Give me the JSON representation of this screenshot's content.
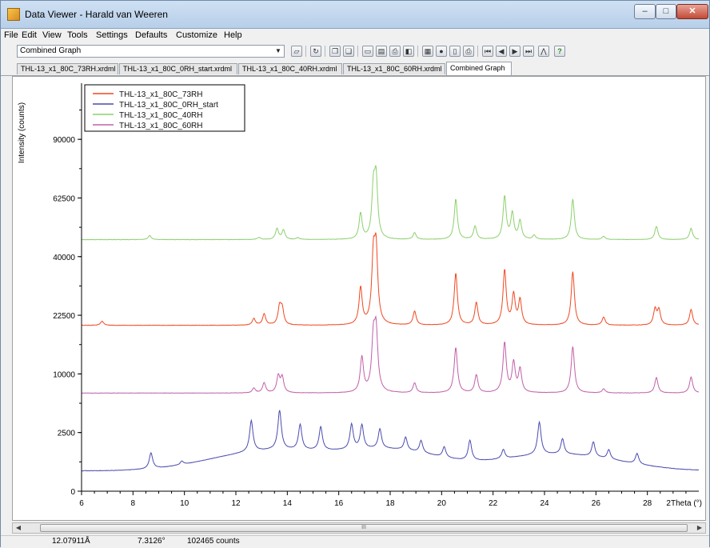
{
  "window": {
    "title": "Data Viewer - Harald van Weeren"
  },
  "menu": [
    "File",
    "Edit",
    "View",
    "Tools",
    "Settings",
    "Defaults",
    "Customize",
    "Help"
  ],
  "toolbar": {
    "combo_value": "Combined Graph",
    "icons": [
      "open-folder-icon",
      "refresh-icon",
      "copy-icon",
      "paste-icon",
      "export-icon",
      "chart-icon",
      "print-icon",
      "print-preview-icon",
      "grid-icon",
      "circle-icon",
      "page-icon",
      "printer-icon",
      "first-icon",
      "prev-icon",
      "next-icon",
      "last-icon",
      "peak-icon",
      "help-icon"
    ]
  },
  "tabs": [
    "THL-13_x1_80C_73RH.xrdml",
    "THL-13_x1_80C_0RH_start.xrdml",
    "THL-13_x1_80C_40RH.xrdml",
    "THL-13_x1_80C_60RH.xrdml",
    "Combined Graph"
  ],
  "active_tab": 4,
  "chart_data": {
    "type": "line",
    "ylabel": "Intensity (counts)",
    "xlabel": "2Theta (°)",
    "x_ticks": [
      6,
      8,
      10,
      12,
      14,
      16,
      18,
      20,
      22,
      24,
      26,
      28
    ],
    "y_ticks": [
      0,
      2500,
      10000,
      22500,
      40000,
      62500,
      90000
    ],
    "y_scale": "square-root",
    "xlim": [
      6,
      30
    ],
    "ylim": [
      0,
      121000
    ],
    "grid": false,
    "legend_position": "top-left",
    "series": [
      {
        "name": "THL-13_x1_80C_73RH",
        "color": "#f04820",
        "baseline": 20000,
        "peaks": [
          [
            6.8,
            1000
          ],
          [
            12.7,
            1600
          ],
          [
            13.1,
            2800
          ],
          [
            13.7,
            4500
          ],
          [
            13.8,
            4000
          ],
          [
            16.85,
            10000
          ],
          [
            17.35,
            19500
          ],
          [
            17.45,
            21500
          ],
          [
            18.95,
            3500
          ],
          [
            20.55,
            14500
          ],
          [
            21.35,
            5800
          ],
          [
            22.45,
            15500
          ],
          [
            22.8,
            8000
          ],
          [
            23.05,
            6500
          ],
          [
            25.1,
            15000
          ],
          [
            26.3,
            2000
          ],
          [
            28.3,
            4000
          ],
          [
            28.45,
            3800
          ],
          [
            29.7,
            4000
          ]
        ]
      },
      {
        "name": "THL-13_x1_80C_0RH_start",
        "color": "#4b4bb0",
        "baseline": 300,
        "peaks": [
          [
            8.7,
            700
          ],
          [
            9.9,
            150
          ],
          [
            12.6,
            2500
          ],
          [
            13.7,
            3500
          ],
          [
            14.5,
            2000
          ],
          [
            15.3,
            1800
          ],
          [
            16.5,
            2000
          ],
          [
            16.9,
            1900
          ],
          [
            17.6,
            1500
          ],
          [
            18.6,
            900
          ],
          [
            19.2,
            800
          ],
          [
            20.1,
            600
          ],
          [
            21.1,
            1200
          ],
          [
            22.4,
            500
          ],
          [
            23.8,
            2500
          ],
          [
            24.7,
            1000
          ],
          [
            25.9,
            900
          ],
          [
            26.5,
            500
          ],
          [
            27.6,
            500
          ]
        ],
        "humps": [
          [
            13.5,
            900,
            3
          ],
          [
            18,
            900,
            2.5
          ],
          [
            24.5,
            700,
            3
          ]
        ]
      },
      {
        "name": "THL-13_x1_80C_40RH",
        "color": "#8cd06c",
        "baseline": 46000,
        "peaks": [
          [
            8.65,
            1500
          ],
          [
            12.9,
            800
          ],
          [
            13.6,
            4000
          ],
          [
            13.85,
            3500
          ],
          [
            14.4,
            700
          ],
          [
            16.85,
            10000
          ],
          [
            17.35,
            20000
          ],
          [
            17.45,
            24000
          ],
          [
            18.95,
            2500
          ],
          [
            20.55,
            16000
          ],
          [
            21.3,
            5000
          ],
          [
            22.45,
            17000
          ],
          [
            22.75,
            10000
          ],
          [
            23.05,
            7000
          ],
          [
            23.6,
            1500
          ],
          [
            25.1,
            16000
          ],
          [
            26.3,
            1200
          ],
          [
            28.35,
            5000
          ],
          [
            29.7,
            4200
          ]
        ]
      },
      {
        "name": "THL-13_x1_80C_60RH",
        "color": "#c060a8",
        "baseline": 7000,
        "peaks": [
          [
            12.7,
            700
          ],
          [
            13.1,
            1500
          ],
          [
            13.65,
            2600
          ],
          [
            13.8,
            2400
          ],
          [
            16.9,
            6000
          ],
          [
            17.35,
            10000
          ],
          [
            17.45,
            11500
          ],
          [
            18.95,
            1500
          ],
          [
            20.55,
            8000
          ],
          [
            21.35,
            2800
          ],
          [
            22.45,
            9000
          ],
          [
            22.8,
            5000
          ],
          [
            23.05,
            3800
          ],
          [
            25.1,
            8200
          ],
          [
            26.3,
            600
          ],
          [
            28.35,
            2400
          ],
          [
            29.7,
            2500
          ]
        ]
      }
    ]
  },
  "status": {
    "d_spacing": "12.07911Å",
    "angle": "7.3126°",
    "counts": "102465 counts"
  },
  "scrollbar": {
    "thumb_label": "III"
  }
}
